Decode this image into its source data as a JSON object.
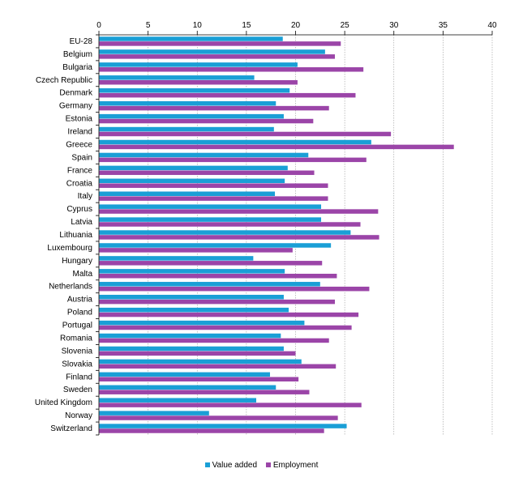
{
  "chart_data": {
    "type": "bar",
    "orientation": "horizontal",
    "categories": [
      "EU-28",
      "Belgium",
      "Bulgaria",
      "Czech Republic",
      "Denmark",
      "Germany",
      "Estonia",
      "Ireland",
      "Greece",
      "Spain",
      "France",
      "Croatia",
      "Italy",
      "Cyprus",
      "Latvia",
      "Lithuania",
      "Luxembourg",
      "Hungary",
      "Malta",
      "Netherlands",
      "Austria",
      "Poland",
      "Portugal",
      "Romania",
      "Slovenia",
      "Slovakia",
      "Finland",
      "Sweden",
      "United Kingdom",
      "Norway",
      "Switzerland"
    ],
    "series": [
      {
        "name": "Value added",
        "color": "#1a9fd6",
        "values": [
          18.7,
          23.0,
          20.2,
          15.8,
          19.4,
          18.0,
          18.8,
          17.8,
          27.7,
          21.3,
          19.2,
          18.9,
          17.9,
          22.6,
          22.6,
          25.6,
          23.6,
          15.7,
          18.9,
          22.5,
          18.8,
          19.3,
          20.9,
          18.5,
          18.8,
          20.6,
          17.4,
          18.0,
          16.0,
          11.2,
          25.2
        ]
      },
      {
        "name": "Employment",
        "color": "#9b45a8",
        "values": [
          24.6,
          24.0,
          26.9,
          20.2,
          26.1,
          23.4,
          21.8,
          29.7,
          36.1,
          27.2,
          21.9,
          23.3,
          23.3,
          28.4,
          26.6,
          28.5,
          19.7,
          22.7,
          24.2,
          27.5,
          24.0,
          26.4,
          25.7,
          23.4,
          20.0,
          24.1,
          20.3,
          21.4,
          26.7,
          24.3,
          22.9
        ]
      }
    ],
    "xlim": [
      0,
      40
    ],
    "xticks": [
      0,
      5,
      10,
      15,
      20,
      25,
      30,
      35,
      40
    ],
    "xaxis_position": "top",
    "grid": "vertical dashed",
    "legend_position": "bottom-center"
  }
}
